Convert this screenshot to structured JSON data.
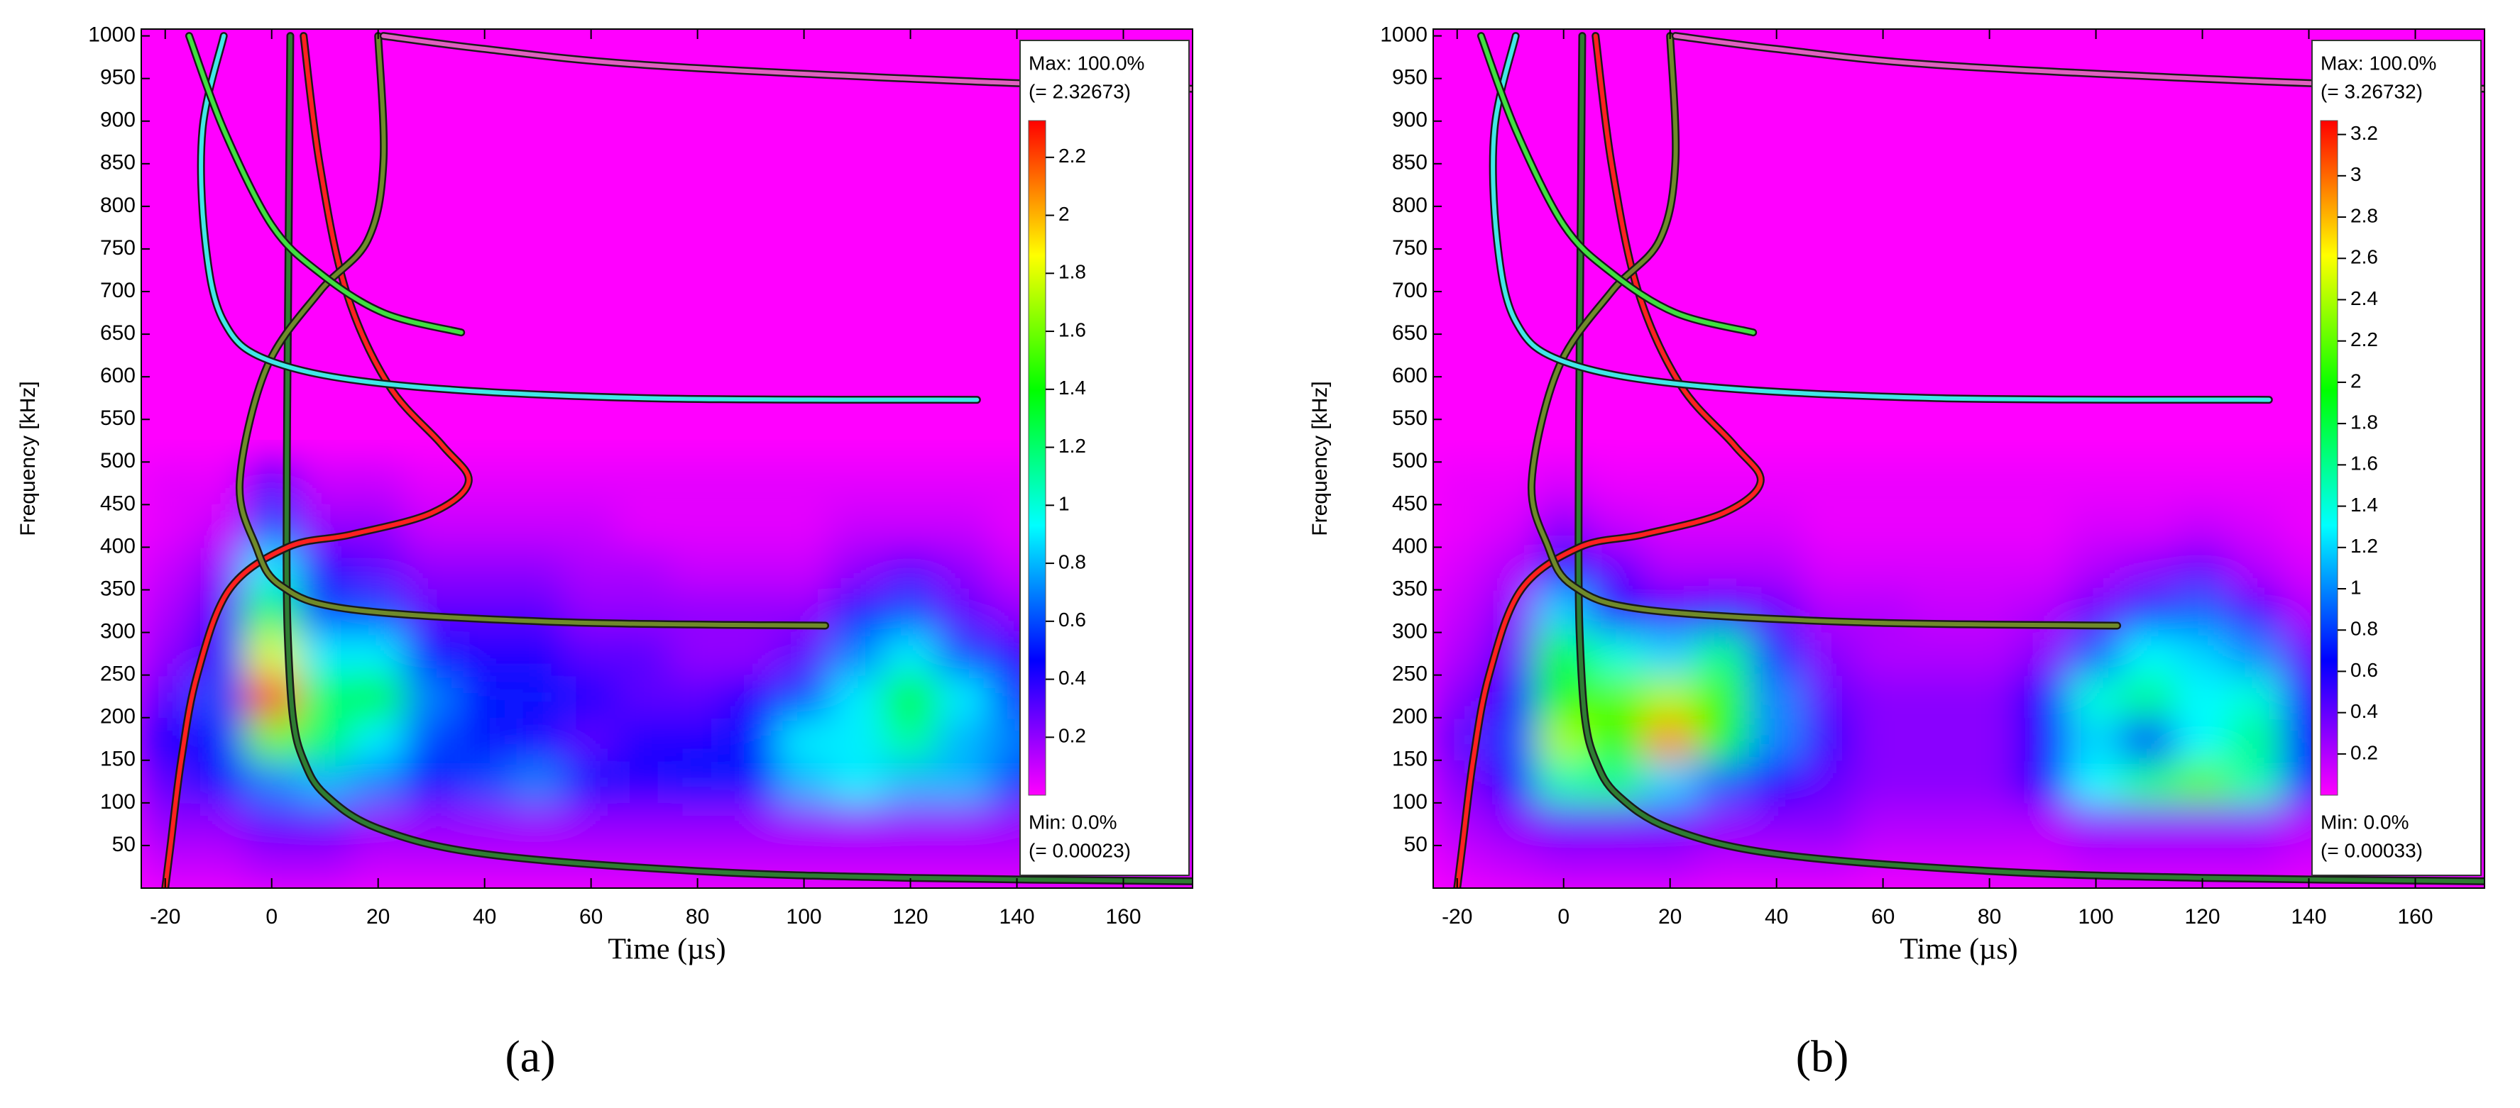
{
  "chart_data": [
    {
      "type": "heatmap",
      "panel_label": "(a)",
      "xlabel": "Time (µs)",
      "ylabel": "Frequency [kHz]",
      "xlim": [
        -24.5,
        173
      ],
      "ylim": [
        0,
        1008
      ],
      "xticks": [
        -20,
        0,
        20,
        40,
        60,
        80,
        100,
        120,
        140,
        160
      ],
      "yticks": [
        50,
        100,
        150,
        200,
        250,
        300,
        350,
        400,
        450,
        500,
        550,
        600,
        650,
        700,
        750,
        800,
        850,
        900,
        950,
        1000
      ],
      "colormap": [
        "#ff00ff",
        "#0000ff",
        "#00ffff",
        "#00ff00",
        "#ffff00",
        "#ff0000"
      ],
      "curve_outline": "#1a1a1a",
      "heatmap": {
        "x": [
          -20,
          -10,
          0,
          10,
          20,
          30,
          40,
          50,
          60,
          70,
          80,
          90,
          100,
          110,
          120,
          130,
          140,
          150,
          160,
          170
        ],
        "y": [
          25,
          75,
          125,
          175,
          225,
          275,
          325,
          375,
          425,
          475
        ],
        "z": [
          [
            0.1,
            0.1,
            0.15,
            0.15,
            0.1,
            0.1,
            0.1,
            0.1,
            0.1,
            0.1,
            0.1,
            0.1,
            0.1,
            0.1,
            0.1,
            0.1,
            0.1,
            0.1,
            0.1,
            0.1
          ],
          [
            0.2,
            0.2,
            0.3,
            0.3,
            0.2,
            0.2,
            0.2,
            0.2,
            0.2,
            0.2,
            0.2,
            0.2,
            0.2,
            0.2,
            0.2,
            0.2,
            0.2,
            0.15,
            0.15,
            0.15
          ],
          [
            0.3,
            0.5,
            0.7,
            0.8,
            0.7,
            0.5,
            0.6,
            0.7,
            0.5,
            0.4,
            0.5,
            0.5,
            0.8,
            0.9,
            0.8,
            0.8,
            0.6,
            0.5,
            0.4,
            0.3
          ],
          [
            0.4,
            0.5,
            1.6,
            1.2,
            0.9,
            0.6,
            0.5,
            0.4,
            0.3,
            0.4,
            0.4,
            0.5,
            0.9,
            0.9,
            1.1,
            0.8,
            0.7,
            0.4,
            0.3,
            0.2
          ],
          [
            0.3,
            0.6,
            2.2,
            1.2,
            1.3,
            0.7,
            0.5,
            0.5,
            0.4,
            0.3,
            0.3,
            0.4,
            0.6,
            0.9,
            1.4,
            0.9,
            0.6,
            0.3,
            0.2,
            0.2
          ],
          [
            0.2,
            0.4,
            1.8,
            0.9,
            0.9,
            0.5,
            0.4,
            0.4,
            0.3,
            0.3,
            0.2,
            0.2,
            0.3,
            0.7,
            0.9,
            0.6,
            0.4,
            0.2,
            0.2,
            0.1
          ],
          [
            0.15,
            0.3,
            1.2,
            0.6,
            0.6,
            0.3,
            0.3,
            0.3,
            0.2,
            0.2,
            0.2,
            0.2,
            0.2,
            0.5,
            0.6,
            0.3,
            0.2,
            0.15,
            0.1,
            0.1
          ],
          [
            0.1,
            0.2,
            0.9,
            0.4,
            0.3,
            0.2,
            0.2,
            0.2,
            0.15,
            0.15,
            0.1,
            0.1,
            0.1,
            0.2,
            0.3,
            0.2,
            0.1,
            0.1,
            0.1,
            0.1
          ],
          [
            0.05,
            0.1,
            0.6,
            0.2,
            0.2,
            0.1,
            0.1,
            0.1,
            0.1,
            0.05,
            0.05,
            0.05,
            0.05,
            0.1,
            0.1,
            0.1,
            0.05,
            0.05,
            0.05,
            0.05
          ],
          [
            0.05,
            0.05,
            0.3,
            0.1,
            0.1,
            0.05,
            0.05,
            0.05,
            0.05,
            0.05,
            0.05,
            0.05,
            0.05,
            0.05,
            0.05,
            0.05,
            0.05,
            0.05,
            0.05,
            0.05
          ]
        ]
      },
      "colorbar": {
        "max_text": "Max: 100.0%",
        "max": {
          "value": 2.32673,
          "label": "(= 2.32673)"
        },
        "min_text": "Min: 0.0%",
        "min": {
          "value": 0.00023,
          "label": "(= 0.00023)"
        },
        "ticks": [
          0.2,
          0.4,
          0.6,
          0.8,
          1,
          1.2,
          1.4,
          1.6,
          1.8,
          2,
          2.2
        ]
      },
      "curves": [
        {
          "color": "#2e7d32",
          "x": [
            3.5,
            3.3,
            3.1,
            2.9,
            2.8,
            3.0,
            4.0,
            6.0,
            10,
            20,
            40,
            80,
            120,
            173
          ],
          "y": [
            1000,
            850,
            700,
            550,
            400,
            300,
            200,
            150,
            110,
            70,
            40,
            20,
            12,
            8
          ]
        },
        {
          "color": "#ff2020",
          "x": [
            6,
            9,
            14,
            22,
            32,
            37,
            30,
            15,
            3,
            -8,
            -14,
            -17,
            -19,
            -20
          ],
          "y": [
            1000,
            850,
            700,
            590,
            520,
            477,
            440,
            415,
            400,
            350,
            250,
            150,
            50,
            0
          ]
        },
        {
          "color": "#6f8a2a",
          "x": [
            20,
            21,
            18,
            9,
            -1,
            -6,
            -3,
            1.7,
            15,
            55,
            104
          ],
          "y": [
            1000,
            853,
            760,
            700,
            610,
            477,
            402,
            355,
            327,
            312,
            308
          ]
        },
        {
          "color": "#40e8e8",
          "x": [
            -9,
            -13,
            -12.5,
            -9,
            0,
            24,
            70,
            132.5
          ],
          "y": [
            1000,
            890,
            760,
            665,
            618,
            590,
            575,
            573
          ]
        },
        {
          "color": "#40e040",
          "x": [
            -15.5,
            -9,
            0,
            9,
            21,
            35.6
          ],
          "y": [
            1000,
            890,
            778,
            722,
            675,
            652
          ]
        },
        {
          "color": "#e060c0",
          "x": [
            21,
            39.5,
            70,
            130,
            173
          ],
          "y": [
            1000,
            985,
            966,
            947,
            938
          ]
        }
      ]
    },
    {
      "type": "heatmap",
      "panel_label": "(b)",
      "xlabel": "Time (µs)",
      "ylabel": "Frequency [kHz]",
      "xlim": [
        -24.5,
        173
      ],
      "ylim": [
        0,
        1008
      ],
      "xticks": [
        -20,
        0,
        20,
        40,
        60,
        80,
        100,
        120,
        140,
        160
      ],
      "yticks": [
        50,
        100,
        150,
        200,
        250,
        300,
        350,
        400,
        450,
        500,
        550,
        600,
        650,
        700,
        750,
        800,
        850,
        900,
        950,
        1000
      ],
      "colormap": [
        "#ff00ff",
        "#0000ff",
        "#00ffff",
        "#00ff00",
        "#ffff00",
        "#ff0000"
      ],
      "curve_outline": "#1a1a1a",
      "heatmap": {
        "x": [
          -20,
          -10,
          0,
          10,
          20,
          30,
          40,
          50,
          60,
          70,
          80,
          90,
          100,
          110,
          120,
          130,
          140,
          150,
          160,
          170
        ],
        "y": [
          25,
          75,
          125,
          175,
          225,
          275,
          325,
          375,
          425,
          475
        ],
        "z": [
          [
            0.1,
            0.15,
            0.2,
            0.2,
            0.2,
            0.15,
            0.15,
            0.15,
            0.1,
            0.1,
            0.1,
            0.1,
            0.15,
            0.15,
            0.15,
            0.15,
            0.1,
            0.1,
            0.1,
            0.1
          ],
          [
            0.2,
            0.3,
            0.4,
            0.4,
            0.4,
            0.3,
            0.3,
            0.3,
            0.2,
            0.2,
            0.2,
            0.2,
            0.3,
            0.3,
            0.3,
            0.3,
            0.2,
            0.2,
            0.2,
            0.2
          ],
          [
            0.3,
            0.6,
            1.5,
            1.6,
            1.2,
            0.9,
            0.6,
            0.4,
            0.3,
            0.3,
            0.3,
            0.6,
            1.3,
            1.6,
            2.2,
            1.5,
            0.8,
            0.4,
            0.3,
            0.2
          ],
          [
            0.4,
            0.8,
            2.4,
            2.0,
            2.9,
            2.0,
            1.0,
            0.5,
            0.3,
            0.3,
            0.3,
            0.6,
            1.2,
            0.7,
            1.3,
            1.6,
            0.7,
            0.5,
            0.3,
            0.2
          ],
          [
            0.3,
            0.6,
            2.0,
            2.2,
            2.4,
            2.1,
            1.0,
            0.4,
            0.3,
            0.3,
            0.3,
            0.6,
            1.4,
            1.6,
            1.3,
            1.4,
            0.6,
            0.3,
            0.2,
            0.2
          ],
          [
            0.2,
            0.4,
            1.8,
            1.4,
            1.2,
            1.6,
            0.8,
            0.3,
            0.2,
            0.2,
            0.2,
            0.3,
            0.9,
            1.3,
            1.2,
            1.0,
            0.4,
            0.2,
            0.2,
            0.1
          ],
          [
            0.15,
            0.3,
            1.2,
            0.6,
            0.5,
            0.7,
            0.4,
            0.2,
            0.2,
            0.15,
            0.15,
            0.2,
            0.4,
            0.8,
            0.9,
            0.5,
            0.2,
            0.15,
            0.1,
            0.1
          ],
          [
            0.1,
            0.2,
            0.7,
            0.4,
            0.2,
            0.2,
            0.2,
            0.1,
            0.1,
            0.1,
            0.1,
            0.1,
            0.2,
            0.3,
            0.4,
            0.2,
            0.1,
            0.1,
            0.1,
            0.1
          ],
          [
            0.05,
            0.1,
            0.3,
            0.15,
            0.1,
            0.1,
            0.1,
            0.05,
            0.05,
            0.05,
            0.05,
            0.05,
            0.1,
            0.1,
            0.15,
            0.1,
            0.05,
            0.05,
            0.05,
            0.05
          ],
          [
            0.05,
            0.05,
            0.1,
            0.05,
            0.05,
            0.05,
            0.05,
            0.05,
            0.05,
            0.05,
            0.05,
            0.05,
            0.05,
            0.05,
            0.05,
            0.05,
            0.05,
            0.05,
            0.05,
            0.05
          ]
        ]
      },
      "colorbar": {
        "max_text": "Max: 100.0%",
        "max": {
          "value": 3.26732,
          "label": "(= 3.26732)"
        },
        "min_text": "Min: 0.0%",
        "min": {
          "value": 0.00033,
          "label": "(= 0.00033)"
        },
        "ticks": [
          0.2,
          0.4,
          0.6,
          0.8,
          1,
          1.2,
          1.4,
          1.6,
          1.8,
          2,
          2.2,
          2.4,
          2.6,
          2.8,
          3,
          3.2
        ]
      },
      "curves": [
        {
          "color": "#2e7d32",
          "x": [
            3.5,
            3.3,
            3.1,
            2.9,
            2.8,
            3.0,
            4.0,
            6.0,
            10,
            20,
            40,
            80,
            120,
            173
          ],
          "y": [
            1000,
            850,
            700,
            550,
            400,
            300,
            200,
            150,
            110,
            70,
            40,
            20,
            12,
            8
          ]
        },
        {
          "color": "#ff2020",
          "x": [
            6,
            9,
            14,
            22,
            32,
            37,
            30,
            15,
            3,
            -8,
            -14,
            -17,
            -19,
            -20
          ],
          "y": [
            1000,
            850,
            700,
            590,
            520,
            477,
            440,
            415,
            400,
            350,
            250,
            150,
            50,
            0
          ]
        },
        {
          "color": "#6f8a2a",
          "x": [
            20,
            21,
            18,
            9,
            -1,
            -6,
            -3,
            1.7,
            15,
            55,
            104
          ],
          "y": [
            1000,
            853,
            760,
            700,
            610,
            477,
            402,
            355,
            327,
            312,
            308
          ]
        },
        {
          "color": "#40e8e8",
          "x": [
            -9,
            -13,
            -12.5,
            -9,
            0,
            24,
            70,
            132.5
          ],
          "y": [
            1000,
            890,
            760,
            665,
            618,
            590,
            575,
            573
          ]
        },
        {
          "color": "#40e040",
          "x": [
            -15.5,
            -9,
            0,
            9,
            21,
            35.6
          ],
          "y": [
            1000,
            890,
            778,
            722,
            675,
            652
          ]
        },
        {
          "color": "#e060c0",
          "x": [
            21,
            39.5,
            70,
            130,
            173
          ],
          "y": [
            1000,
            985,
            966,
            947,
            938
          ]
        }
      ]
    }
  ]
}
